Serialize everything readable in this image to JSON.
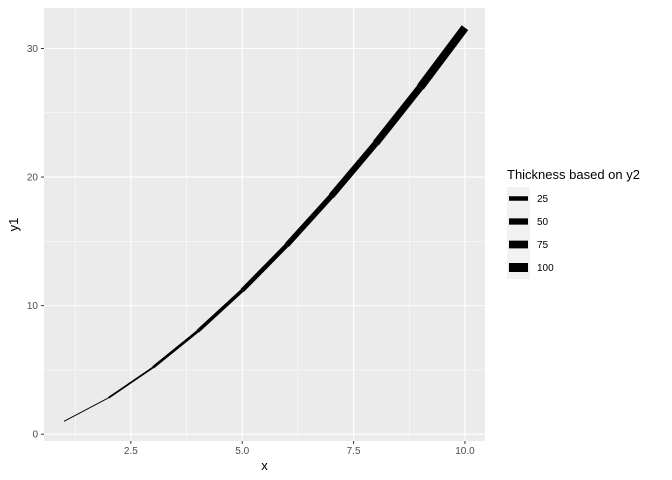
{
  "chart_data": {
    "type": "line",
    "x": [
      1,
      2,
      3,
      4,
      5,
      6,
      7,
      8,
      9,
      10
    ],
    "y1": [
      1.0,
      2.83,
      5.2,
      8.0,
      11.18,
      14.7,
      18.52,
      22.63,
      27.0,
      31.62
    ],
    "y2": [
      1,
      4,
      9,
      16,
      25,
      36,
      49,
      64,
      81,
      100
    ],
    "xlabel": "x",
    "ylabel": "y1",
    "xlim": [
      0.55,
      10.45
    ],
    "ylim": [
      -0.53,
      33.15
    ],
    "x_ticks": [
      2.5,
      5.0,
      7.5,
      10.0
    ],
    "x_tick_labels": [
      "2.5",
      "5.0",
      "7.5",
      "10.0"
    ],
    "y_ticks": [
      0,
      10,
      20,
      30
    ],
    "y_tick_labels": [
      "0",
      "10",
      "20",
      "30"
    ],
    "grid": true,
    "size_legend": {
      "title": "Thickness based on y2",
      "position": "right",
      "entries": [
        {
          "label": "25",
          "value": 25
        },
        {
          "label": "50",
          "value": 50
        },
        {
          "label": "75",
          "value": 75
        },
        {
          "label": "100",
          "value": 100
        }
      ]
    },
    "colors": {
      "panel": "#ebebeb",
      "grid_major": "#ffffff",
      "line": "#000000"
    }
  }
}
